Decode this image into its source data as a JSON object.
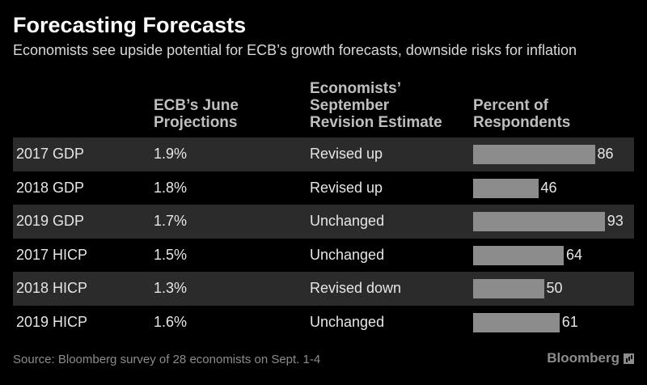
{
  "header": {
    "title": "Forecasting Forecasts",
    "subtitle": "Economists see upside potential for ECB’s growth forecasts, downside risks for inflation"
  },
  "columns": {
    "projections": "ECB’s June\nProjections",
    "revision": "Economists’\nSeptember\nRevision Estimate",
    "percent": "Percent of\nRespondents"
  },
  "footer": {
    "source": "Source: Bloomberg survey of 28 economists on Sept. 1-4",
    "brand": "Bloomberg"
  },
  "colors": {
    "background": "#000000",
    "bar": "#8c8c8c",
    "shaded_row": "#2b2b2b"
  },
  "chart_data": {
    "type": "table",
    "title": "Forecasting Forecasts",
    "subtitle": "Economists see upside potential for ECB’s growth forecasts, downside risks for inflation",
    "columns": [
      "",
      "ECB’s June Projections",
      "Economists’ September Revision Estimate",
      "Percent of Respondents"
    ],
    "xlim": [
      0,
      100
    ],
    "rows": [
      {
        "label": "2017 GDP",
        "projection": "1.9%",
        "revision": "Revised up",
        "percent": 86
      },
      {
        "label": "2018 GDP",
        "projection": "1.8%",
        "revision": "Revised up",
        "percent": 46
      },
      {
        "label": "2019 GDP",
        "projection": "1.7%",
        "revision": "Unchanged",
        "percent": 93
      },
      {
        "label": "2017 HICP",
        "projection": "1.5%",
        "revision": "Unchanged",
        "percent": 64
      },
      {
        "label": "2018 HICP",
        "projection": "1.3%",
        "revision": "Revised down",
        "percent": 50
      },
      {
        "label": "2019 HICP",
        "projection": "1.6%",
        "revision": "Unchanged",
        "percent": 61
      }
    ]
  }
}
